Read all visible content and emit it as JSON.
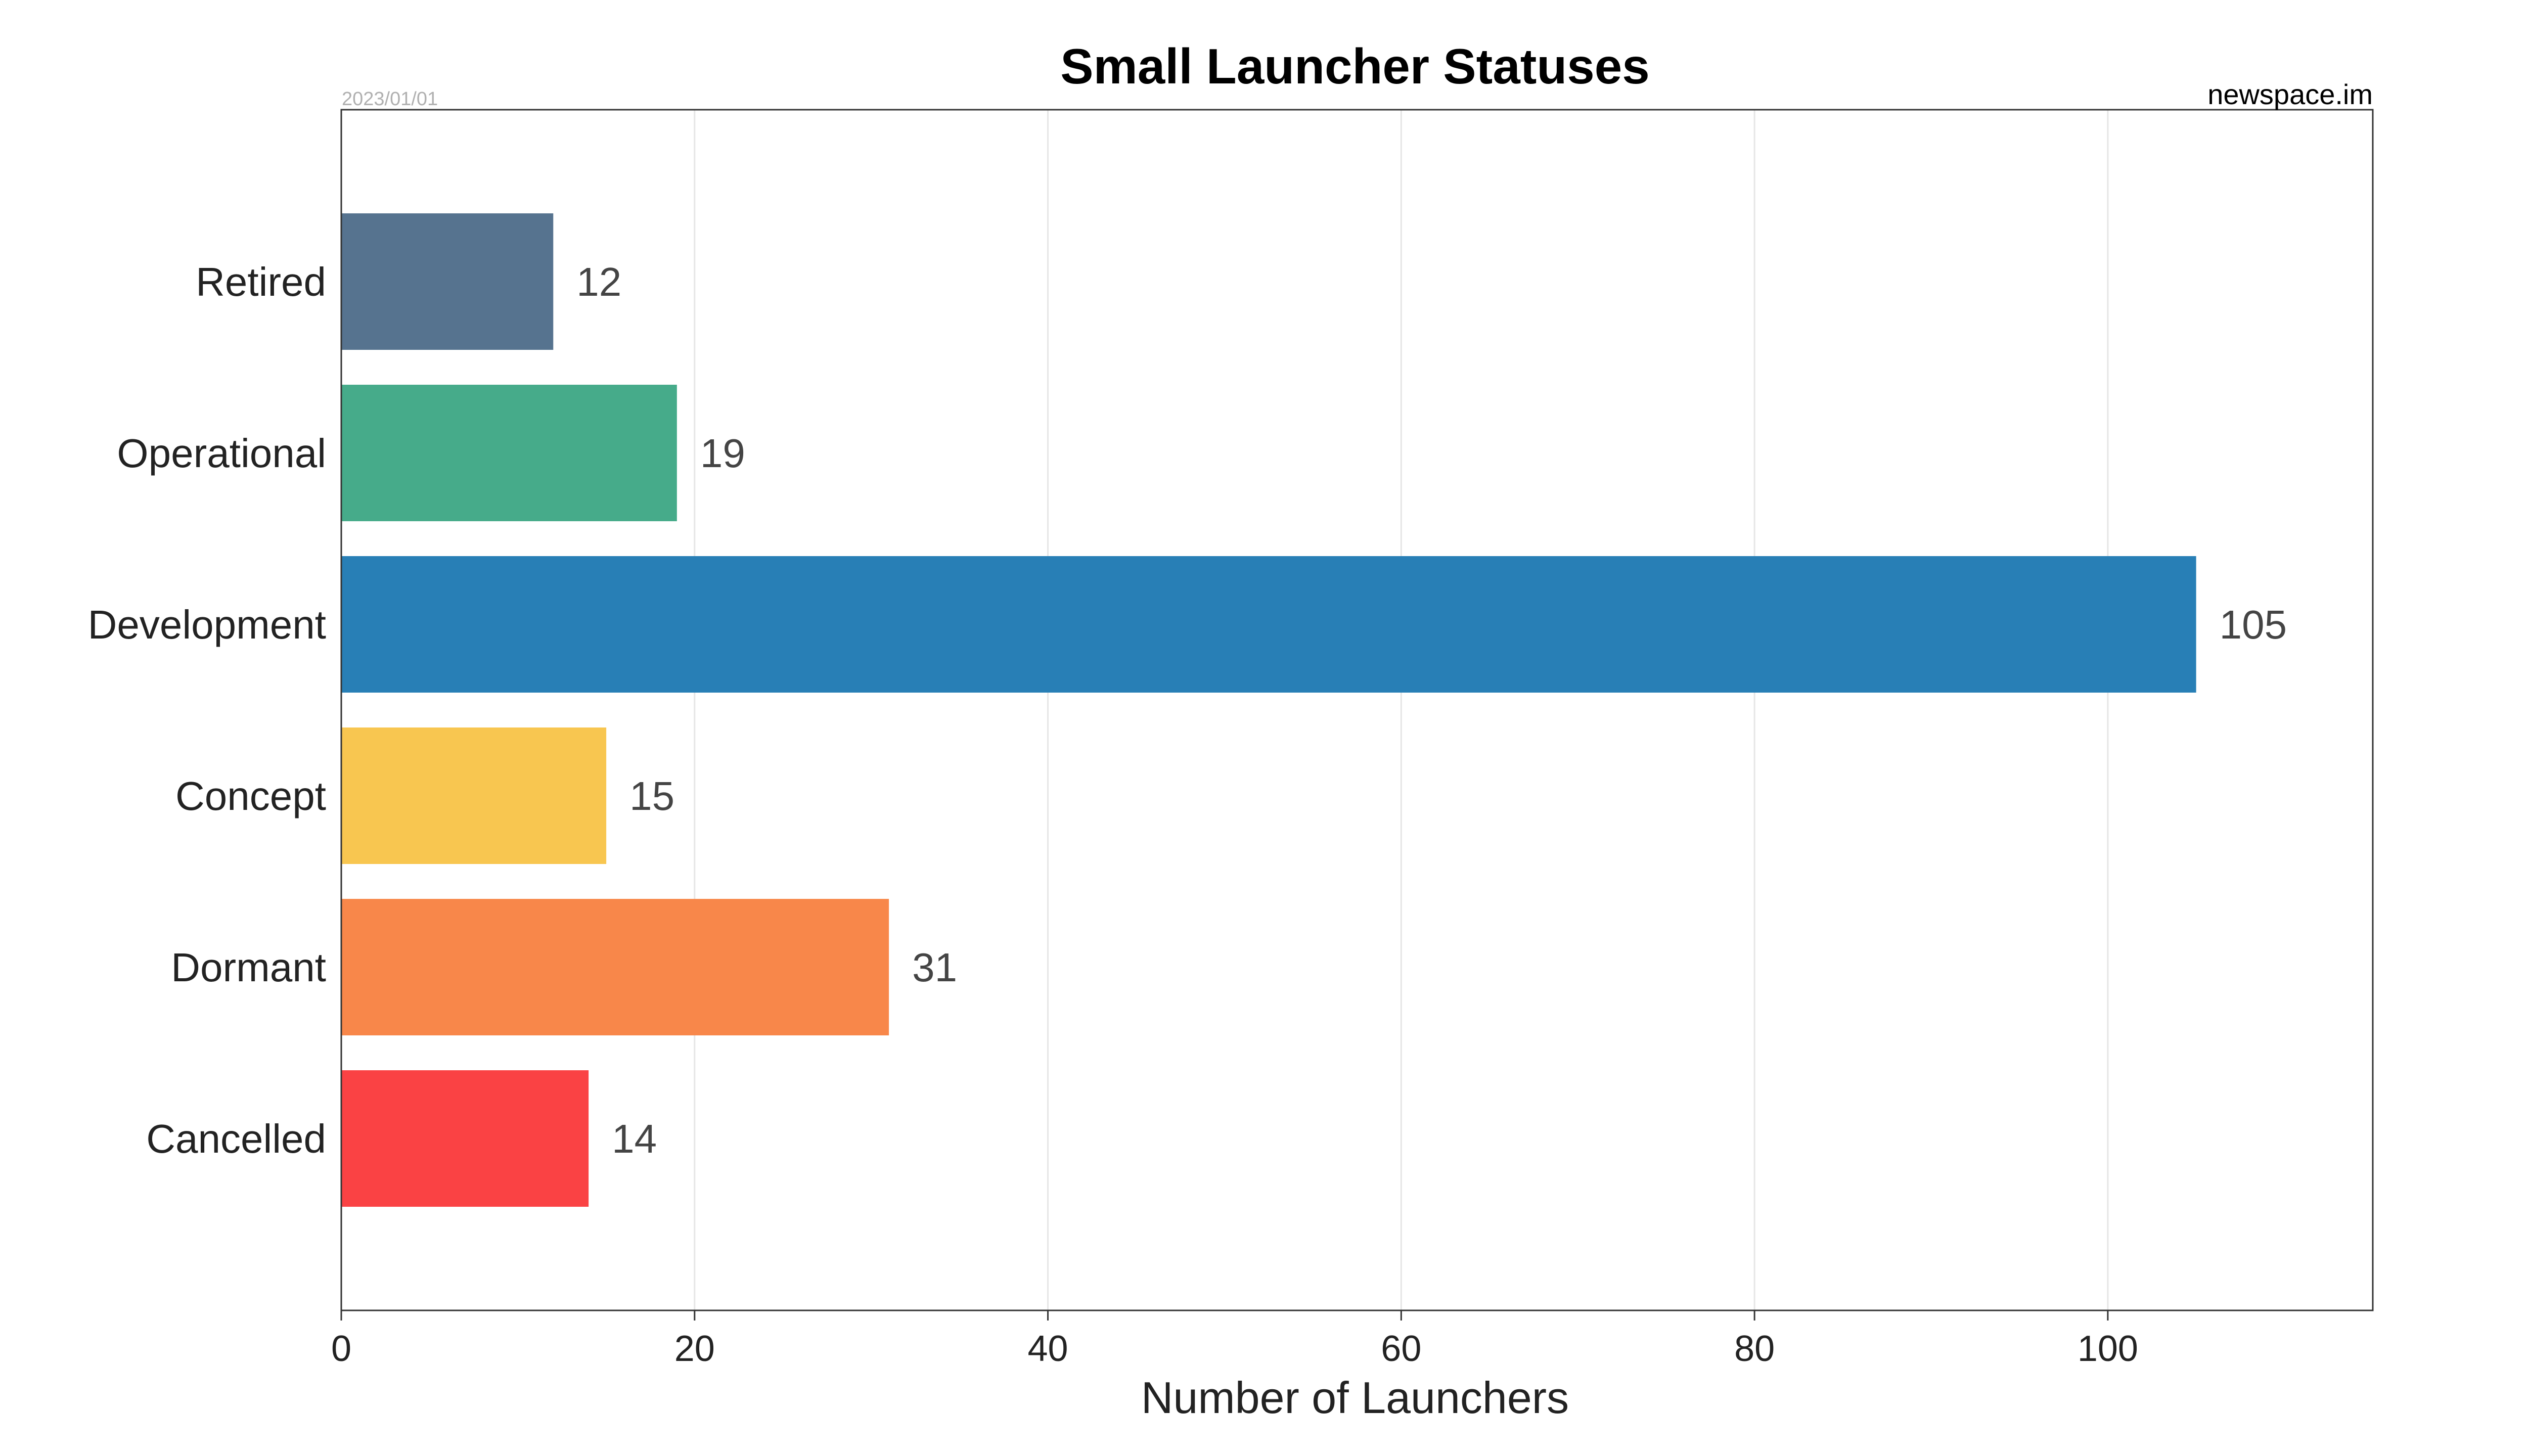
{
  "chart_data": {
    "type": "bar",
    "orientation": "horizontal",
    "title": "Small Launcher Statuses",
    "xlabel": "Number of Launchers",
    "ylabel": "",
    "date_note": "2023/01/01",
    "source_note": "newspace.im",
    "categories": [
      "Retired",
      "Operational",
      "Development",
      "Concept",
      "Dormant",
      "Cancelled"
    ],
    "values": [
      12,
      19,
      105,
      15,
      31,
      14
    ],
    "colors": [
      "#56738f",
      "#46ab8a",
      "#287fb6",
      "#f8c650",
      "#f8874a",
      "#fa4244"
    ],
    "xlim": [
      0,
      115
    ],
    "xticks": [
      0,
      20,
      40,
      60,
      80,
      100
    ],
    "grid": "vertical",
    "legend": "none"
  }
}
